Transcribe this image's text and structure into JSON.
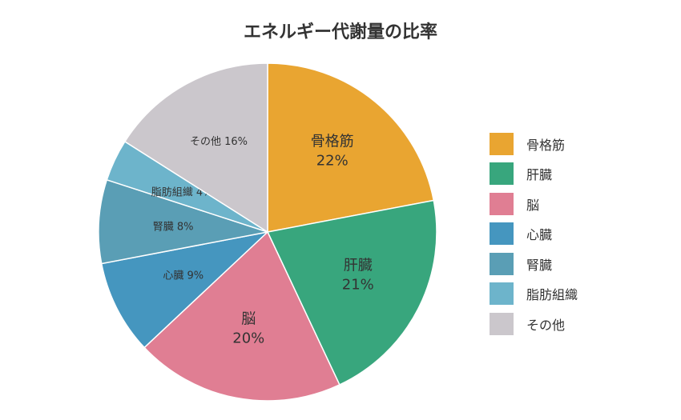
{
  "chart_data": {
    "type": "pie",
    "title": "エネルギー代謝量の比率",
    "categories": [
      "骨格筋",
      "肝臓",
      "脳",
      "心臓",
      "腎臓",
      "脂肪組織",
      "その他"
    ],
    "values": [
      22,
      21,
      20,
      9,
      8,
      4,
      16
    ],
    "labels": [
      "22%",
      "21%",
      "20%",
      "9%",
      "8%",
      "4%",
      "16%"
    ],
    "colors": [
      "#E9A531",
      "#38A67D",
      "#E07E93",
      "#4596BF",
      "#5A9EB5",
      "#6DB4CB",
      "#CBC7CC"
    ],
    "start_angle": "top",
    "direction": "clockwise",
    "legend_position": "right"
  }
}
